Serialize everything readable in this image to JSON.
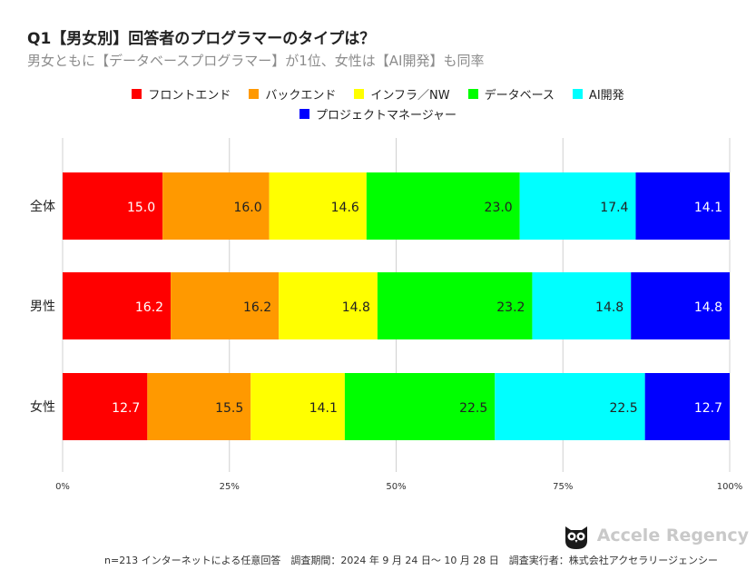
{
  "header": {
    "title": "Q1【男女別】回答者のプログラマーのタイプは？",
    "subtitle": "男女ともに【データベースプログラマー】が1位、女性は【AI開発】も同率"
  },
  "chart_data": {
    "type": "bar",
    "orientation": "horizontal",
    "stacked": true,
    "percent": true,
    "categories": [
      "全体",
      "男性",
      "女性"
    ],
    "series": [
      {
        "name": "フロントエンド",
        "color": "#ff0000",
        "values": [
          15.0,
          16.2,
          12.7
        ]
      },
      {
        "name": "バックエンド",
        "color": "#ff9900",
        "values": [
          16.0,
          16.2,
          15.5
        ]
      },
      {
        "name": "インフラ／NW",
        "color": "#ffff00",
        "values": [
          14.6,
          14.8,
          14.1
        ]
      },
      {
        "name": "データベース",
        "color": "#00ff00",
        "values": [
          23.0,
          23.2,
          22.5
        ]
      },
      {
        "name": "AI開発",
        "color": "#00ffff",
        "values": [
          17.4,
          14.8,
          22.5
        ]
      },
      {
        "name": "プロジェクトマネージャー",
        "color": "#0000ff",
        "values": [
          14.1,
          14.8,
          12.7
        ]
      }
    ],
    "label_colors": [
      "#ffffff",
      "#222222",
      "#222222",
      "#222222",
      "#222222",
      "#ffffff"
    ],
    "xlim": [
      0,
      100
    ],
    "xticks": [
      "0%",
      "25%",
      "50%",
      "75%",
      "100%"
    ],
    "legend": "top",
    "grid": true
  },
  "footer": {
    "note": "n=213 インターネットによる任意回答　調査期間：2024 年 9 月 24 日～ 10 月 28 日　調査実行者：株式会社アクセラリージェンシー",
    "brand": "Accele Regency"
  }
}
